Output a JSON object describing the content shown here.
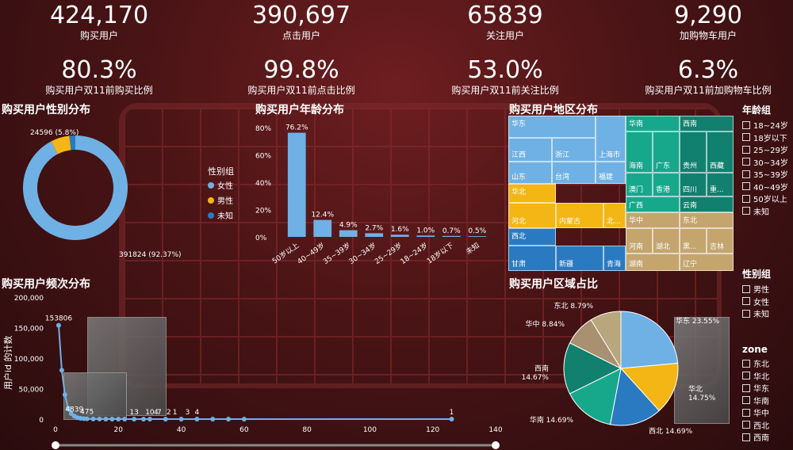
{
  "kpis": [
    {
      "value": "424,170",
      "label": "购买用户"
    },
    {
      "value": "390,697",
      "label": "点击用户"
    },
    {
      "value": "65839",
      "label": "关注用户"
    },
    {
      "value": "9,290",
      "label": "加购物车用户"
    }
  ],
  "ratios": [
    {
      "value": "80.3%",
      "label": "购买用户双11前购买比例"
    },
    {
      "value": "99.8%",
      "label": "购买用户双11前点击比例"
    },
    {
      "value": "53.0%",
      "label": "购买用户双11前关注比例"
    },
    {
      "value": "6.3%",
      "label": "购买用户双11前加购物车比例"
    }
  ],
  "titles": {
    "gender": "购买用户性别分布",
    "age": "购买用户年龄分布",
    "region": "购买用户地区分布",
    "frequency": "购买用户频次分布",
    "zone_share": "购买用户区域占比"
  },
  "colors": {
    "blue_light": "#6fb1e4",
    "yellow": "#f4b615",
    "blue_dark": "#2a7ac2",
    "teal": "#17a88c",
    "teal_dark": "#12806e",
    "tan": "#c4a56e"
  },
  "gender_legend": {
    "title": "性别组",
    "items": [
      "女性",
      "男性",
      "未知"
    ]
  },
  "chart_data": [
    {
      "type": "pie",
      "title": "购买用户性别分布",
      "categories": [
        "女性",
        "男性",
        "未知"
      ],
      "values": [
        391824,
        24596,
        7750
      ],
      "labels": [
        "391824 (92.37%)",
        "24596 (5.8%)"
      ]
    },
    {
      "type": "bar",
      "title": "购买用户年龄分布",
      "categories": [
        "50岁以上",
        "40~49岁",
        "35~39岁",
        "30~34岁",
        "25~29岁",
        "18~24岁",
        "18岁以下",
        "未知"
      ],
      "values": [
        76.2,
        12.4,
        4.9,
        2.7,
        1.6,
        1.0,
        0.7,
        0.5
      ],
      "value_labels": [
        "76.2%",
        "12.4%",
        "4.9%",
        "2.7%",
        "1.6%",
        "1.0%",
        "0.7%",
        "0.5%"
      ],
      "yticks": [
        "0%",
        "20%",
        "40%",
        "60%",
        "80%"
      ],
      "ylim": [
        0,
        80
      ]
    },
    {
      "type": "line",
      "title": "购买用户频次分布",
      "ylabel": "用户id 的计数",
      "x": [
        1,
        2,
        3,
        4,
        5,
        6,
        7,
        8,
        9,
        10,
        12,
        14,
        16,
        18,
        20,
        22,
        25,
        28,
        30,
        35,
        40,
        45,
        50,
        55,
        60,
        126
      ],
      "y": [
        153806,
        80000,
        40000,
        18000,
        9000,
        4839,
        2200,
        1300,
        800,
        475,
        200,
        100,
        60,
        40,
        13,
        10,
        7,
        5,
        4,
        3,
        2,
        1,
        1,
        1,
        1,
        1
      ],
      "point_labels": [
        {
          "x": 1,
          "text": "153806"
        },
        {
          "x": 6,
          "text": "4839"
        },
        {
          "x": 10,
          "text": "475"
        },
        {
          "x": 25,
          "text": "13"
        },
        {
          "x": 30,
          "text": "10"
        },
        {
          "x": 33,
          "text": "7"
        },
        {
          "x": 38,
          "text": "1"
        },
        {
          "x": 32,
          "text": "4"
        },
        {
          "x": 36,
          "text": "2"
        },
        {
          "x": 42,
          "text": "3"
        },
        {
          "x": 45,
          "text": "4"
        },
        {
          "x": 126,
          "text": "1"
        }
      ],
      "xticks": [
        "0",
        "20",
        "40",
        "60",
        "80",
        "100",
        "120",
        "140"
      ],
      "yticks": [
        "0",
        "50,000",
        "100,000",
        "150,000",
        "200,000"
      ],
      "xlim": [
        0,
        140
      ],
      "ylim": [
        0,
        200000
      ]
    },
    {
      "type": "pie",
      "title": "购买用户区域占比",
      "categories": [
        "东北",
        "华北",
        "华东",
        "华南",
        "华中",
        "西北",
        "西南"
      ],
      "values": [
        8.79,
        14.75,
        23.55,
        14.69,
        8.84,
        14.69,
        14.67
      ],
      "labels": [
        "东北 8.79%",
        "华北 14.75%",
        "华东 23.55%",
        "华南 14.69%",
        "华中 8.84%",
        "西北 14.69%",
        "西南 14.67%"
      ]
    }
  ],
  "treemap": [
    {
      "region": "华东",
      "color": "#6fb1e4",
      "cells": [
        "江西",
        "浙江",
        "上海市",
        "山东",
        "台湾",
        "福建"
      ]
    },
    {
      "region": "华北",
      "color": "#f4b615",
      "cells": [
        "河北",
        "内蒙古",
        "北..."
      ]
    },
    {
      "region": "西北",
      "color": "#2a7ac2",
      "cells": [
        "甘肃",
        "新疆",
        "青海"
      ]
    },
    {
      "region": "华南",
      "color": "#17a88c",
      "cells": [
        "海南",
        "广东",
        "澳门",
        "香港",
        "广西"
      ]
    },
    {
      "region": "西南",
      "color": "#12806e",
      "cells": [
        "贵州",
        "西藏",
        "四川",
        "重...",
        "云南"
      ]
    },
    {
      "region": "华中",
      "color": "#c4a56e",
      "cells": [
        "河南",
        "湖北",
        "湖南"
      ]
    },
    {
      "region": "东北",
      "color": "#c4a56e",
      "cells": [
        "黑...",
        "吉林",
        "辽宁"
      ]
    }
  ],
  "filters": {
    "age": {
      "title": "年龄组",
      "items": [
        "18~24岁",
        "18岁以下",
        "25~29岁",
        "30~34岁",
        "35~39岁",
        "40~49岁",
        "50岁以上",
        "未知"
      ]
    },
    "gender": {
      "title": "性别组",
      "items": [
        "男性",
        "女性",
        "未知"
      ]
    },
    "zone": {
      "title": "zone",
      "items": [
        "东北",
        "华北",
        "华东",
        "华南",
        "华中",
        "西北",
        "西南"
      ]
    }
  }
}
